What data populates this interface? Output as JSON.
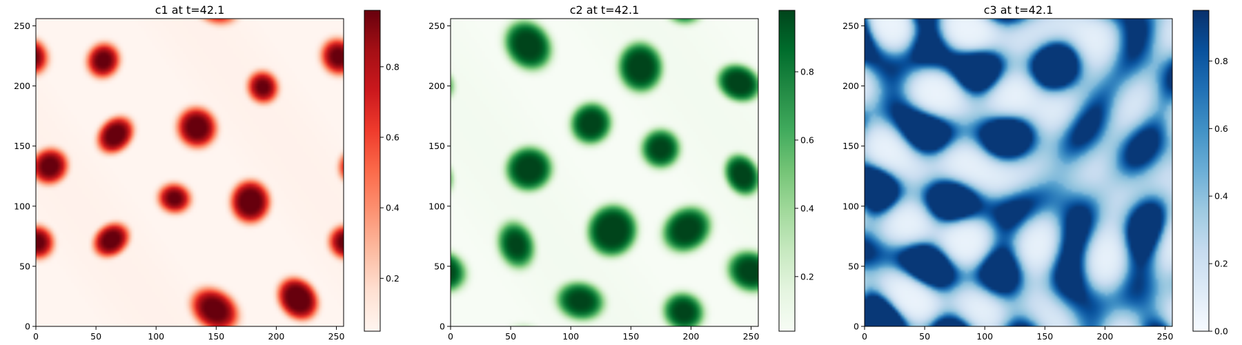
{
  "chart_data": [
    {
      "type": "heatmap",
      "title": "c1 at t=42.1",
      "colormap": "Reds",
      "pattern": "spots",
      "seed": 11,
      "xlim": [
        0,
        256
      ],
      "ylim": [
        0,
        256
      ],
      "xticks": [
        0,
        50,
        100,
        150,
        200,
        250
      ],
      "yticks": [
        0,
        50,
        100,
        150,
        200,
        250
      ],
      "colorbar_range": [
        0.05,
        0.96
      ],
      "colorbar_ticks": [
        0.2,
        0.4,
        0.6,
        0.8
      ],
      "colorbar_tick_labels": [
        "0.2",
        "0.4",
        "0.6",
        "0.8"
      ]
    },
    {
      "type": "heatmap",
      "title": "c2 at t=42.1",
      "colormap": "Greens",
      "pattern": "spots",
      "seed": 29,
      "xlim": [
        0,
        256
      ],
      "ylim": [
        0,
        256
      ],
      "xticks": [
        0,
        50,
        100,
        150,
        200,
        250
      ],
      "yticks": [
        0,
        50,
        100,
        150,
        200,
        250
      ],
      "colorbar_range": [
        0.04,
        0.98
      ],
      "colorbar_ticks": [
        0.2,
        0.4,
        0.6,
        0.8
      ],
      "colorbar_tick_labels": [
        "0.2",
        "0.4",
        "0.6",
        "0.8"
      ]
    },
    {
      "type": "heatmap",
      "title": "c3 at t=42.1",
      "colormap": "Blues",
      "pattern": "labyrinth",
      "seed": 47,
      "xlim": [
        0,
        256
      ],
      "ylim": [
        0,
        256
      ],
      "xticks": [
        0,
        50,
        100,
        150,
        200,
        250
      ],
      "yticks": [
        0,
        50,
        100,
        150,
        200,
        250
      ],
      "colorbar_range": [
        0.0,
        0.95
      ],
      "colorbar_ticks": [
        0.0,
        0.2,
        0.4,
        0.6,
        0.8
      ],
      "colorbar_tick_labels": [
        "0.0",
        "0.2",
        "0.4",
        "0.6",
        "0.8"
      ]
    }
  ]
}
